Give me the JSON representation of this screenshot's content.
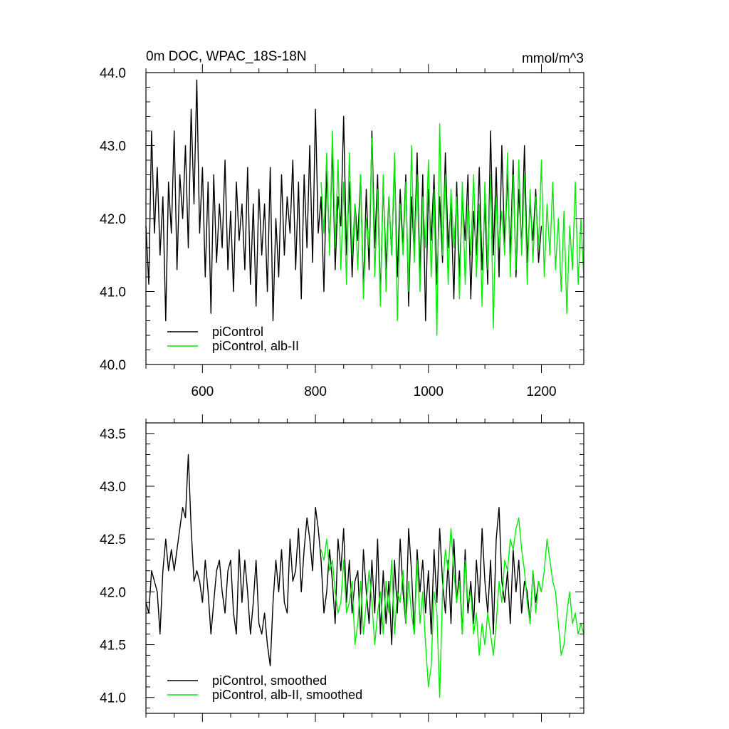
{
  "chart_data": [
    {
      "type": "line",
      "title": "0m DOC, WPAC_18S-18N",
      "units": "mmol/m^3",
      "xlim": [
        500,
        1275
      ],
      "ylim": [
        40.0,
        44.0
      ],
      "x_ticks": [
        600,
        800,
        1000,
        1200
      ],
      "x_tick_labels": [
        "600",
        "800",
        "1000",
        "1200"
      ],
      "y_ticks": [
        40.0,
        41.0,
        42.0,
        43.0,
        44.0
      ],
      "y_tick_labels": [
        "40.0",
        "41.0",
        "42.0",
        "43.0",
        "44.0"
      ],
      "grid": false,
      "legend_position": "bottom-left",
      "series": [
        {
          "name": "piControl",
          "color": "#000000",
          "x": [
            500,
            505,
            510,
            515,
            520,
            525,
            530,
            535,
            540,
            545,
            550,
            555,
            560,
            565,
            570,
            575,
            580,
            585,
            590,
            595,
            600,
            605,
            610,
            615,
            620,
            625,
            630,
            635,
            640,
            645,
            650,
            655,
            660,
            665,
            670,
            675,
            680,
            685,
            690,
            695,
            700,
            705,
            710,
            715,
            720,
            725,
            730,
            735,
            740,
            745,
            750,
            755,
            760,
            765,
            770,
            775,
            780,
            785,
            790,
            795,
            800,
            805,
            810,
            815,
            820,
            825,
            830,
            835,
            840,
            845,
            850,
            855,
            860,
            865,
            870,
            875,
            880,
            885,
            890,
            895,
            900,
            905,
            910,
            915,
            920,
            925,
            930,
            935,
            940,
            945,
            950,
            955,
            960,
            965,
            970,
            975,
            980,
            985,
            990,
            995,
            1000,
            1005,
            1010,
            1015,
            1020,
            1025,
            1030,
            1035,
            1040,
            1045,
            1050,
            1055,
            1060,
            1065,
            1070,
            1075,
            1080,
            1085,
            1090,
            1095,
            1100,
            1105,
            1110,
            1115,
            1120,
            1125,
            1130,
            1135,
            1140,
            1145,
            1150,
            1155,
            1160,
            1165,
            1170,
            1175,
            1180,
            1185,
            1190,
            1195,
            1200
          ],
          "values": [
            41.9,
            41.1,
            43.2,
            41.8,
            42.7,
            41.5,
            42.3,
            40.6,
            42.5,
            41.8,
            43.2,
            41.3,
            42.6,
            42.0,
            43.0,
            41.6,
            43.5,
            42.2,
            43.9,
            41.8,
            42.7,
            41.2,
            42.5,
            40.7,
            42.6,
            41.4,
            42.2,
            41.6,
            42.8,
            41.3,
            42.1,
            41.0,
            42.5,
            41.7,
            42.2,
            41.3,
            42.7,
            41.1,
            42.2,
            40.8,
            42.4,
            41.5,
            42.2,
            41.0,
            42.7,
            40.6,
            42.0,
            41.2,
            42.6,
            41.5,
            42.3,
            41.8,
            42.8,
            41.3,
            42.5,
            40.9,
            42.6,
            41.6,
            43.0,
            41.4,
            43.5,
            41.8,
            42.3,
            41.0,
            42.7,
            41.6,
            43.0,
            41.3,
            42.3,
            41.9,
            43.4,
            41.5,
            42.5,
            41.2,
            42.2,
            41.7,
            42.6,
            41.0,
            42.4,
            41.3,
            43.2,
            41.6,
            42.6,
            40.9,
            42.5,
            41.3,
            42.3,
            41.5,
            42.8,
            41.2,
            42.4,
            41.6,
            42.6,
            40.8,
            42.3,
            41.5,
            42.9,
            41.2,
            42.6,
            40.6,
            42.4,
            41.7,
            42.6,
            41.1,
            42.3,
            41.4,
            42.9,
            41.6,
            42.2,
            40.9,
            42.5,
            41.2,
            42.3,
            41.7,
            42.6,
            40.9,
            42.1,
            41.5,
            42.7,
            41.3,
            42.2,
            41.1,
            43.2,
            41.5,
            42.7,
            41.2,
            43.0,
            41.6,
            42.6,
            41.5,
            42.8,
            41.2,
            42.4,
            41.6,
            43.0,
            41.4,
            42.2,
            41.7,
            42.4,
            41.4,
            41.9
          ]
        },
        {
          "name": "piControl, alb-II",
          "color": "#00ee00",
          "x": [
            810,
            815,
            820,
            825,
            830,
            835,
            840,
            845,
            850,
            855,
            860,
            865,
            870,
            875,
            880,
            885,
            890,
            895,
            900,
            905,
            910,
            915,
            920,
            925,
            930,
            935,
            940,
            945,
            950,
            955,
            960,
            965,
            970,
            975,
            980,
            985,
            990,
            995,
            1000,
            1005,
            1010,
            1015,
            1020,
            1025,
            1030,
            1035,
            1040,
            1045,
            1050,
            1055,
            1060,
            1065,
            1070,
            1075,
            1080,
            1085,
            1090,
            1095,
            1100,
            1105,
            1110,
            1115,
            1120,
            1125,
            1130,
            1135,
            1140,
            1145,
            1150,
            1155,
            1160,
            1165,
            1170,
            1175,
            1180,
            1185,
            1190,
            1195,
            1200,
            1205,
            1210,
            1215,
            1220,
            1225,
            1230,
            1235,
            1240,
            1245,
            1250,
            1255,
            1260,
            1265,
            1270,
            1275
          ],
          "values": [
            42.5,
            41.8,
            42.9,
            41.5,
            43.2,
            41.6,
            42.8,
            41.3,
            42.5,
            41.1,
            42.9,
            41.5,
            42.2,
            41.3,
            42.6,
            40.9,
            42.0,
            41.6,
            43.1,
            41.2,
            42.4,
            40.8,
            42.6,
            41.0,
            42.3,
            41.5,
            42.9,
            40.6,
            42.2,
            41.5,
            42.5,
            41.0,
            43.0,
            41.4,
            42.6,
            41.0,
            42.3,
            41.6,
            42.8,
            41.2,
            42.4,
            40.4,
            43.3,
            41.5,
            42.6,
            41.1,
            42.4,
            41.6,
            42.3,
            40.9,
            42.5,
            41.1,
            42.2,
            41.5,
            42.6,
            41.2,
            42.2,
            40.8,
            42.5,
            41.3,
            42.6,
            40.5,
            42.3,
            41.6,
            42.1,
            41.5,
            42.9,
            41.2,
            42.6,
            41.3,
            42.8,
            41.5,
            42.6,
            41.1,
            42.4,
            41.4,
            42.3,
            41.6,
            42.8,
            41.2,
            42.2,
            41.5,
            42.5,
            41.3,
            42.0,
            41.0,
            42.1,
            40.7,
            41.9,
            41.3,
            42.5,
            41.1,
            42.0,
            41.2
          ]
        }
      ]
    },
    {
      "type": "line",
      "xlim": [
        500,
        1275
      ],
      "ylim": [
        40.85,
        43.6
      ],
      "x_ticks": [
        600,
        800,
        1000,
        1200
      ],
      "y_ticks": [
        41.0,
        41.5,
        42.0,
        42.5,
        43.0,
        43.5
      ],
      "y_tick_labels": [
        "41.0",
        "41.5",
        "42.0",
        "42.5",
        "43.0",
        "43.5"
      ],
      "grid": false,
      "legend_position": "bottom-left",
      "series": [
        {
          "name": "piControl, smoothed",
          "color": "#000000",
          "x": [
            500,
            505,
            510,
            515,
            520,
            525,
            530,
            535,
            540,
            545,
            550,
            555,
            560,
            565,
            570,
            575,
            580,
            585,
            590,
            595,
            600,
            605,
            610,
            615,
            620,
            625,
            630,
            635,
            640,
            645,
            650,
            655,
            660,
            665,
            670,
            675,
            680,
            685,
            690,
            695,
            700,
            705,
            710,
            715,
            720,
            725,
            730,
            735,
            740,
            745,
            750,
            755,
            760,
            765,
            770,
            775,
            780,
            785,
            790,
            795,
            800,
            805,
            810,
            815,
            820,
            825,
            830,
            835,
            840,
            845,
            850,
            855,
            860,
            865,
            870,
            875,
            880,
            885,
            890,
            895,
            900,
            905,
            910,
            915,
            920,
            925,
            930,
            935,
            940,
            945,
            950,
            955,
            960,
            965,
            970,
            975,
            980,
            985,
            990,
            995,
            1000,
            1005,
            1010,
            1015,
            1020,
            1025,
            1030,
            1035,
            1040,
            1045,
            1050,
            1055,
            1060,
            1065,
            1070,
            1075,
            1080,
            1085,
            1090,
            1095,
            1100,
            1105,
            1110,
            1115,
            1120,
            1125,
            1130,
            1135,
            1140,
            1145,
            1150,
            1155,
            1160,
            1165,
            1170,
            1175,
            1180,
            1185,
            1190,
            1195,
            1200
          ],
          "values": [
            41.9,
            41.8,
            42.2,
            42.1,
            42.0,
            41.6,
            42.2,
            42.5,
            42.2,
            42.4,
            42.2,
            42.4,
            42.6,
            42.8,
            42.7,
            43.3,
            42.6,
            42.1,
            42.2,
            42.1,
            41.9,
            42.3,
            42.0,
            41.6,
            41.9,
            42.2,
            42.3,
            42.0,
            41.8,
            42.2,
            42.3,
            41.8,
            41.6,
            42.4,
            41.9,
            42.3,
            42.0,
            41.6,
            41.9,
            42.3,
            41.7,
            41.6,
            41.8,
            41.5,
            41.3,
            41.9,
            42.3,
            42.0,
            42.4,
            41.9,
            41.8,
            42.5,
            42.1,
            42.2,
            42.6,
            42.0,
            42.4,
            42.7,
            42.5,
            42.2,
            42.8,
            42.6,
            42.3,
            41.8,
            42.0,
            42.4,
            42.1,
            41.7,
            42.5,
            42.2,
            42.6,
            41.9,
            42.3,
            41.8,
            42.1,
            42.2,
            41.6,
            42.4,
            42.0,
            41.7,
            42.3,
            41.8,
            42.5,
            41.6,
            42.2,
            41.7,
            42.1,
            41.5,
            42.3,
            41.8,
            42.5,
            42.0,
            41.7,
            42.6,
            42.2,
            41.6,
            42.4,
            42.0,
            42.3,
            41.8,
            42.2,
            41.6,
            42.4,
            41.9,
            42.6,
            42.1,
            41.8,
            42.3,
            41.7,
            42.5,
            41.9,
            42.2,
            41.6,
            42.4,
            41.8,
            42.1,
            41.7,
            42.3,
            41.9,
            42.6,
            42.1,
            41.8,
            42.3,
            41.6,
            42.5,
            42.8,
            42.1,
            41.9,
            42.2,
            41.7,
            42.4,
            42.0,
            42.3,
            41.8,
            42.1,
            42.0,
            41.7,
            42.2,
            41.9,
            42.1,
            42.0
          ]
        },
        {
          "name": "piControl, alb-II, smoothed",
          "color": "#00ee00",
          "x": [
            810,
            815,
            820,
            825,
            830,
            835,
            840,
            845,
            850,
            855,
            860,
            865,
            870,
            875,
            880,
            885,
            890,
            895,
            900,
            905,
            910,
            915,
            920,
            925,
            930,
            935,
            940,
            945,
            950,
            955,
            960,
            965,
            970,
            975,
            980,
            985,
            990,
            995,
            1000,
            1005,
            1010,
            1015,
            1020,
            1025,
            1030,
            1035,
            1040,
            1045,
            1050,
            1055,
            1060,
            1065,
            1070,
            1075,
            1080,
            1085,
            1090,
            1095,
            1100,
            1105,
            1110,
            1115,
            1120,
            1125,
            1130,
            1135,
            1140,
            1145,
            1150,
            1155,
            1160,
            1165,
            1170,
            1175,
            1180,
            1185,
            1190,
            1195,
            1200,
            1205,
            1210,
            1215,
            1220,
            1225,
            1230,
            1235,
            1240,
            1245,
            1250,
            1255,
            1260,
            1265,
            1270,
            1275
          ],
          "values": [
            42.4,
            42.3,
            42.5,
            42.2,
            42.3,
            42.0,
            41.8,
            41.9,
            42.3,
            41.8,
            41.9,
            42.1,
            41.5,
            41.7,
            42.1,
            41.6,
            41.9,
            42.2,
            41.9,
            41.5,
            41.8,
            42.0,
            41.6,
            42.1,
            41.8,
            42.3,
            41.6,
            42.0,
            41.9,
            42.2,
            41.7,
            42.1,
            41.8,
            41.6,
            42.3,
            41.7,
            42.0,
            41.5,
            41.1,
            41.3,
            42.0,
            41.8,
            41.0,
            42.0,
            42.4,
            42.2,
            42.6,
            42.2,
            41.9,
            42.1,
            41.6,
            42.3,
            41.9,
            42.0,
            41.6,
            41.8,
            41.4,
            41.7,
            41.5,
            41.8,
            41.6,
            41.4,
            41.7,
            42.1,
            41.9,
            42.3,
            42.2,
            42.5,
            42.4,
            42.6,
            42.7,
            42.4,
            42.2,
            41.9,
            41.7,
            42.2,
            41.8,
            42.1,
            42.0,
            42.2,
            42.5,
            42.3,
            42.1,
            42.0,
            41.7,
            41.4,
            41.5,
            41.8,
            42.0,
            41.7,
            41.8,
            41.6,
            41.7,
            41.6
          ]
        }
      ]
    }
  ]
}
